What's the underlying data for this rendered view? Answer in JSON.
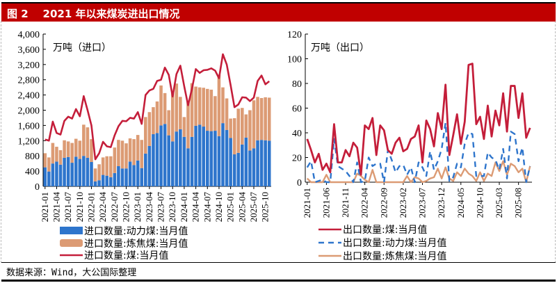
{
  "title": "图 2    2021 年以来煤炭进出口情况",
  "footer": "数据来源：Wind，大公国际整理",
  "chart_data": [
    {
      "type": "bar",
      "stacked": true,
      "unit_label": "万吨（进口）",
      "categories": [
        "2021-01",
        "2021-02",
        "2021-03",
        "2021-04",
        "2021-05",
        "2021-06",
        "2021-07",
        "2021-08",
        "2021-09",
        "2021-10",
        "2021-11",
        "2021-12",
        "2022-01",
        "2022-02",
        "2022-03",
        "2022-04",
        "2022-05",
        "2022-06",
        "2022-07",
        "2022-08",
        "2022-09",
        "2022-10",
        "2022-11",
        "2022-12",
        "2023-01",
        "2023-02",
        "2023-03",
        "2023-04",
        "2023-05",
        "2023-06",
        "2023-07",
        "2023-08",
        "2023-09",
        "2023-10",
        "2023-11",
        "2023-12",
        "2024-01",
        "2024-02",
        "2024-03",
        "2024-04",
        "2024-05",
        "2024-06",
        "2024-07",
        "2024-08",
        "2024-09",
        "2024-10",
        "2024-11",
        "2024-12",
        "2025-01",
        "2025-02",
        "2025-03",
        "2025-04",
        "2025-05",
        "2025-06",
        "2025-07",
        "2025-08",
        "2025-09",
        "2025-10",
        "2025-11"
      ],
      "x_tick_labels": [
        "2021-01",
        "2021-04",
        "2021-07",
        "2021-10",
        "2022-01",
        "2022-04",
        "2022-07",
        "2022-10",
        "2023-01",
        "2023-04",
        "2023-07",
        "2023-10",
        "2024-01",
        "2024-04",
        "2024-07",
        "2024-10",
        "2025-01",
        "2025-04",
        "2025-07",
        "2025-10"
      ],
      "ylim": [
        0,
        4000
      ],
      "y_ticks": [
        "0",
        "400",
        "800",
        "1,200",
        "1,600",
        "2,000",
        "2,400",
        "2,800",
        "3,200",
        "3,600",
        "4,000"
      ],
      "grid": false,
      "legend": "bottom",
      "series": [
        {
          "name": "进口数量:动力煤:当月值",
          "kind": "bar",
          "color": "#2e75cc",
          "values": [
            500,
            390,
            600,
            650,
            570,
            750,
            770,
            620,
            780,
            720,
            800,
            750,
            640,
            130,
            160,
            300,
            280,
            240,
            350,
            530,
            470,
            470,
            650,
            560,
            680,
            480,
            860,
            1060,
            1370,
            1400,
            1600,
            1640,
            1340,
            1180,
            1440,
            1500,
            1300,
            1000,
            1300,
            1590,
            1620,
            1570,
            1460,
            1450,
            1460,
            1320,
            1660,
            1480,
            1270,
            840,
            880,
            1100,
            1280,
            940,
            1000,
            1210,
            1220,
            1210,
            1200
          ]
        },
        {
          "name": "进口数量:炼焦煤:当月值",
          "kind": "bar",
          "color": "#dc9b74",
          "values": [
            370,
            370,
            540,
            390,
            380,
            460,
            410,
            520,
            470,
            480,
            820,
            800,
            600,
            340,
            420,
            460,
            510,
            550,
            670,
            690,
            730,
            660,
            610,
            680,
            670,
            740,
            960,
            890,
            710,
            830,
            1050,
            810,
            660,
            1290,
            1260,
            850,
            520,
            1240,
            1410,
            1030,
            980,
            1020,
            1100,
            1090,
            910,
            1610,
            940,
            830,
            510,
            950,
            1160,
            960,
            610,
            1060,
            1260,
            1140,
            1100,
            1130,
            1130
          ]
        },
        {
          "name": "进口数量:煤:当月值",
          "kind": "line",
          "color": "#c41e3a",
          "values": [
            1230,
            1200,
            1700,
            1400,
            1360,
            1720,
            1830,
            1780,
            2030,
            1840,
            2370,
            2000,
            1600,
            710,
            870,
            1170,
            1050,
            1030,
            1340,
            1580,
            1720,
            1710,
            1800,
            1780,
            1950,
            1640,
            2400,
            2520,
            2560,
            2770,
            2800,
            3120,
            2930,
            2360,
            2950,
            3170,
            2630,
            2130,
            2560,
            3080,
            2980,
            3050,
            3060,
            3100,
            3040,
            2840,
            3470,
            3200,
            2660,
            2080,
            2150,
            2340,
            2330,
            2240,
            2330,
            2770,
            2910,
            2680,
            2760
          ]
        }
      ]
    },
    {
      "type": "line",
      "unit_label": "万吨（出口）",
      "categories": [
        "2021-01",
        "2021-02",
        "2021-03",
        "2021-04",
        "2021-05",
        "2021-06",
        "2021-07",
        "2021-08",
        "2021-09",
        "2021-10",
        "2021-11",
        "2021-12",
        "2022-01",
        "2022-02",
        "2022-03",
        "2022-04",
        "2022-05",
        "2022-06",
        "2022-07",
        "2022-08",
        "2022-09",
        "2022-10",
        "2022-11",
        "2022-12",
        "2023-01",
        "2023-02",
        "2023-03",
        "2023-04",
        "2023-05",
        "2023-06",
        "2023-07",
        "2023-08",
        "2023-09",
        "2023-10",
        "2023-11",
        "2023-12",
        "2024-01",
        "2024-02",
        "2024-03",
        "2024-04",
        "2024-05",
        "2024-06",
        "2024-07",
        "2024-08",
        "2024-09",
        "2024-10",
        "2024-11",
        "2024-12",
        "2025-01",
        "2025-02",
        "2025-03",
        "2025-04",
        "2025-05",
        "2025-06",
        "2025-07",
        "2025-08",
        "2025-09",
        "2025-10",
        "2025-11"
      ],
      "x_tick_labels": [
        "2021-01",
        "2021-06",
        "2021-11",
        "2022-04",
        "2022-09",
        "2023-02",
        "2023-07",
        "2023-12",
        "2024-05",
        "2024-10",
        "2025-03",
        "2025-08"
      ],
      "ylim": [
        0,
        120
      ],
      "y_ticks": [
        "0",
        "20",
        "40",
        "60",
        "80",
        "100",
        "120"
      ],
      "grid": false,
      "legend": "bottom",
      "series": [
        {
          "name": "出口数量:煤:当月值",
          "style": "solid",
          "color": "#c41e3a",
          "values": [
            35,
            26,
            16,
            23,
            10,
            15,
            8,
            47,
            16,
            16,
            26,
            21,
            32,
            28,
            6,
            46,
            43,
            52,
            22,
            46,
            42,
            26,
            23,
            32,
            36,
            25,
            27,
            35,
            37,
            46,
            16,
            50,
            43,
            29,
            56,
            43,
            79,
            22,
            38,
            55,
            31,
            49,
            95,
            96,
            47,
            53,
            35,
            62,
            37,
            58,
            46,
            72,
            41,
            78,
            78,
            52,
            72,
            36,
            44
          ]
        },
        {
          "name": "出口数量:动力煤:当月值",
          "style": "dashed",
          "color": "#2e75cc",
          "values": [
            12,
            17,
            0,
            1,
            2,
            0,
            0,
            35,
            13,
            11,
            9,
            5,
            0,
            16,
            0,
            1,
            20,
            13,
            15,
            15,
            0,
            26,
            18,
            8,
            13,
            14,
            6,
            12,
            0,
            16,
            12,
            5,
            25,
            10,
            17,
            27,
            48,
            1,
            4,
            15,
            12,
            31,
            40,
            39,
            5,
            5,
            5,
            24,
            20,
            18,
            10,
            27,
            3,
            41,
            39,
            17,
            28,
            0,
            13
          ]
        },
        {
          "name": "出口数量:炼焦煤:当月值",
          "style": "solid",
          "color": "#dc9b74",
          "values": [
            3,
            0,
            0,
            0,
            0,
            6,
            0,
            0,
            0,
            0,
            0,
            0,
            0,
            7,
            5,
            2,
            0,
            10,
            0,
            0,
            0,
            0,
            0,
            0,
            0,
            0,
            5,
            0,
            4,
            3,
            0,
            1,
            3,
            4,
            11,
            3,
            12,
            3,
            1,
            8,
            5,
            11,
            7,
            5,
            1,
            8,
            1,
            7,
            5,
            16,
            9,
            17,
            6,
            15,
            13,
            8,
            11,
            0,
            13
          ]
        }
      ]
    }
  ]
}
